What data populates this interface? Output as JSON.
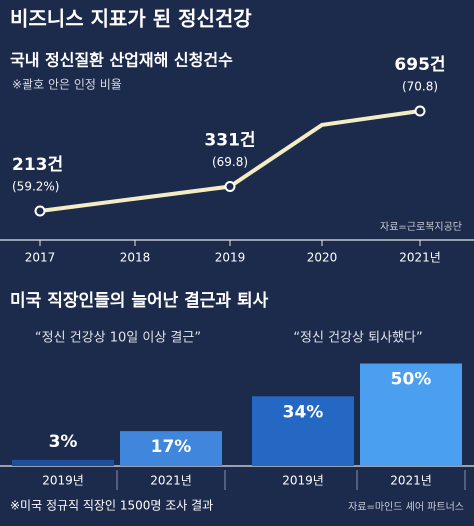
{
  "title": "비즈니스 지표가 된 정신건강",
  "section_title": "미국 직장인들의 늘어난 결근과 퇴사",
  "note": "※미국 정규직 직장인 1500명 조사 결과",
  "source": "자료=마인드 셰어 파트너스",
  "chart_data": [
    {
      "type": "line",
      "title": "국내 정신질환 산업재해 신청건수",
      "subtitle": "※괄호 안은 인정 비율",
      "source": "자료=근로복지공단",
      "categories": [
        "2017",
        "2018",
        "2019",
        "2020",
        "2021년"
      ],
      "values": [
        213,
        272,
        331,
        628,
        695
      ],
      "value_labels": [
        "213건",
        null,
        "331건",
        null,
        "695건"
      ],
      "rate_labels": [
        "(59.2%)",
        null,
        "(69.8)",
        null,
        "(70.8)"
      ],
      "color": "#f4edc4"
    },
    {
      "type": "bar",
      "title": "“정신 건강상 10일 이상 결근”",
      "categories": [
        "2019년",
        "2021년"
      ],
      "values": [
        3,
        17
      ],
      "value_labels": [
        "3%",
        "17%"
      ],
      "colors": [
        "#1d4f9e",
        "#3f86dc"
      ]
    },
    {
      "type": "bar",
      "title": "“정신 건강상 퇴사했다”",
      "categories": [
        "2019년",
        "2021년"
      ],
      "values": [
        34,
        50
      ],
      "value_labels": [
        "34%",
        "50%"
      ],
      "colors": [
        "#2568c4",
        "#4a9ff0"
      ]
    }
  ]
}
